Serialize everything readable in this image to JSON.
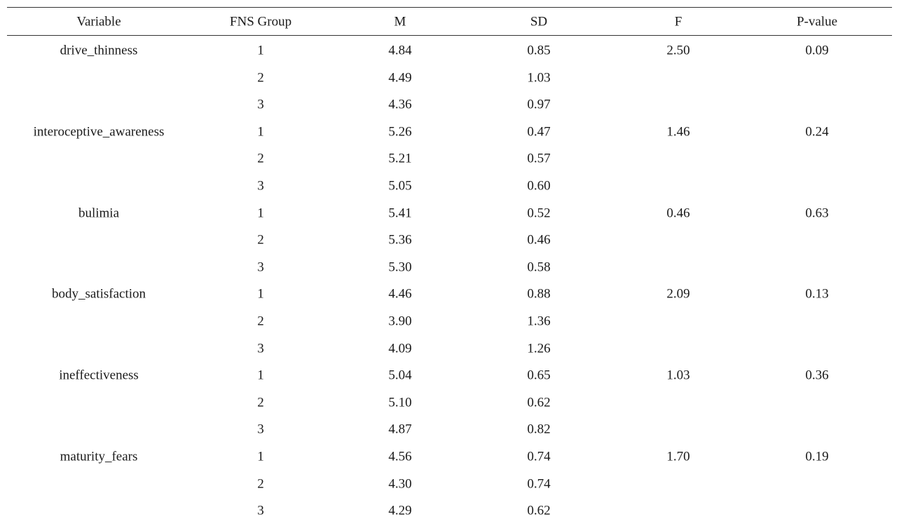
{
  "table": {
    "header": [
      "Variable",
      "FNS Group",
      "M",
      "SD",
      "F",
      "P-value"
    ],
    "groups": [
      {
        "variable": "drive_thinness",
        "F": "2.50",
        "p": "0.09",
        "rows": [
          [
            "1",
            "4.84",
            "0.85"
          ],
          [
            "2",
            "4.49",
            "1.03"
          ],
          [
            "3",
            "4.36",
            "0.97"
          ]
        ]
      },
      {
        "variable": "interoceptive_awareness",
        "F": "1.46",
        "p": "0.24",
        "rows": [
          [
            "1",
            "5.26",
            "0.47"
          ],
          [
            "2",
            "5.21",
            "0.57"
          ],
          [
            "3",
            "5.05",
            "0.60"
          ]
        ]
      },
      {
        "variable": "bulimia",
        "F": "0.46",
        "p": "0.63",
        "rows": [
          [
            "1",
            "5.41",
            "0.52"
          ],
          [
            "2",
            "5.36",
            "0.46"
          ],
          [
            "3",
            "5.30",
            "0.58"
          ]
        ]
      },
      {
        "variable": "body_satisfaction",
        "F": "2.09",
        "p": "0.13",
        "rows": [
          [
            "1",
            "4.46",
            "0.88"
          ],
          [
            "2",
            "3.90",
            "1.36"
          ],
          [
            "3",
            "4.09",
            "1.26"
          ]
        ]
      },
      {
        "variable": "ineffectiveness",
        "F": "1.03",
        "p": "0.36",
        "rows": [
          [
            "1",
            "5.04",
            "0.65"
          ],
          [
            "2",
            "5.10",
            "0.62"
          ],
          [
            "3",
            "4.87",
            "0.82"
          ]
        ]
      },
      {
        "variable": "maturity_fears",
        "F": "1.70",
        "p": "0.19",
        "rows": [
          [
            "1",
            "4.56",
            "0.74"
          ],
          [
            "2",
            "4.30",
            "0.74"
          ],
          [
            "3",
            "4.29",
            "0.62"
          ]
        ]
      }
    ]
  }
}
